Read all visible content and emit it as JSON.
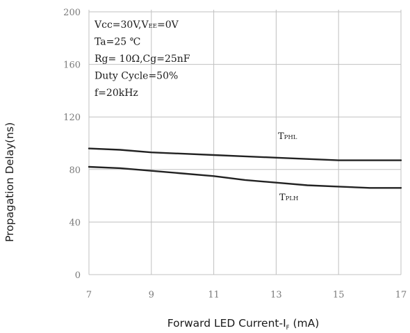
{
  "chart_data": {
    "type": "line",
    "xlabel": "Forward LED Current-I",
    "xlabel_sub": "F",
    "xlabel_unit": " (mA)",
    "ylabel": "Propagation Delay(ns)",
    "xlim": [
      7,
      17
    ],
    "ylim": [
      0,
      200
    ],
    "xticks": [
      7,
      9,
      11,
      13,
      15,
      17
    ],
    "yticks": [
      0,
      40,
      80,
      120,
      160,
      200
    ],
    "xtick_labels": [
      "7",
      "9",
      "11",
      "13",
      "15",
      "17"
    ],
    "ytick_labels": [
      "0",
      "40",
      "80",
      "120",
      "160",
      "200"
    ],
    "grid": true,
    "line_color": "#222222",
    "grid_color": "#c0c0c0",
    "conditions": [
      [
        {
          "t": "Vcc=30V,V"
        },
        {
          "t": "EE",
          "sub": true
        },
        {
          "t": "=0V"
        }
      ],
      [
        {
          "t": "Ta=25 ℃"
        }
      ],
      [
        {
          "t": "Rg= 10Ω,Cg=25nF"
        }
      ],
      [
        {
          "t": "Duty Cycle=50%"
        }
      ],
      [
        {
          "t": "f=20kHz"
        }
      ]
    ],
    "series": [
      {
        "name": "T",
        "name_sub": "PHL",
        "x": [
          7,
          8,
          9,
          10,
          11,
          12,
          13,
          14,
          15,
          16,
          17
        ],
        "y": [
          96,
          95,
          93,
          92,
          91,
          90,
          89,
          88,
          87,
          87,
          87
        ]
      },
      {
        "name": "T",
        "name_sub": "PLH",
        "x": [
          7,
          8,
          9,
          10,
          11,
          12,
          13,
          14,
          15,
          16,
          17
        ],
        "y": [
          82,
          81,
          79,
          77,
          75,
          72,
          70,
          68,
          67,
          66,
          66
        ]
      }
    ]
  }
}
